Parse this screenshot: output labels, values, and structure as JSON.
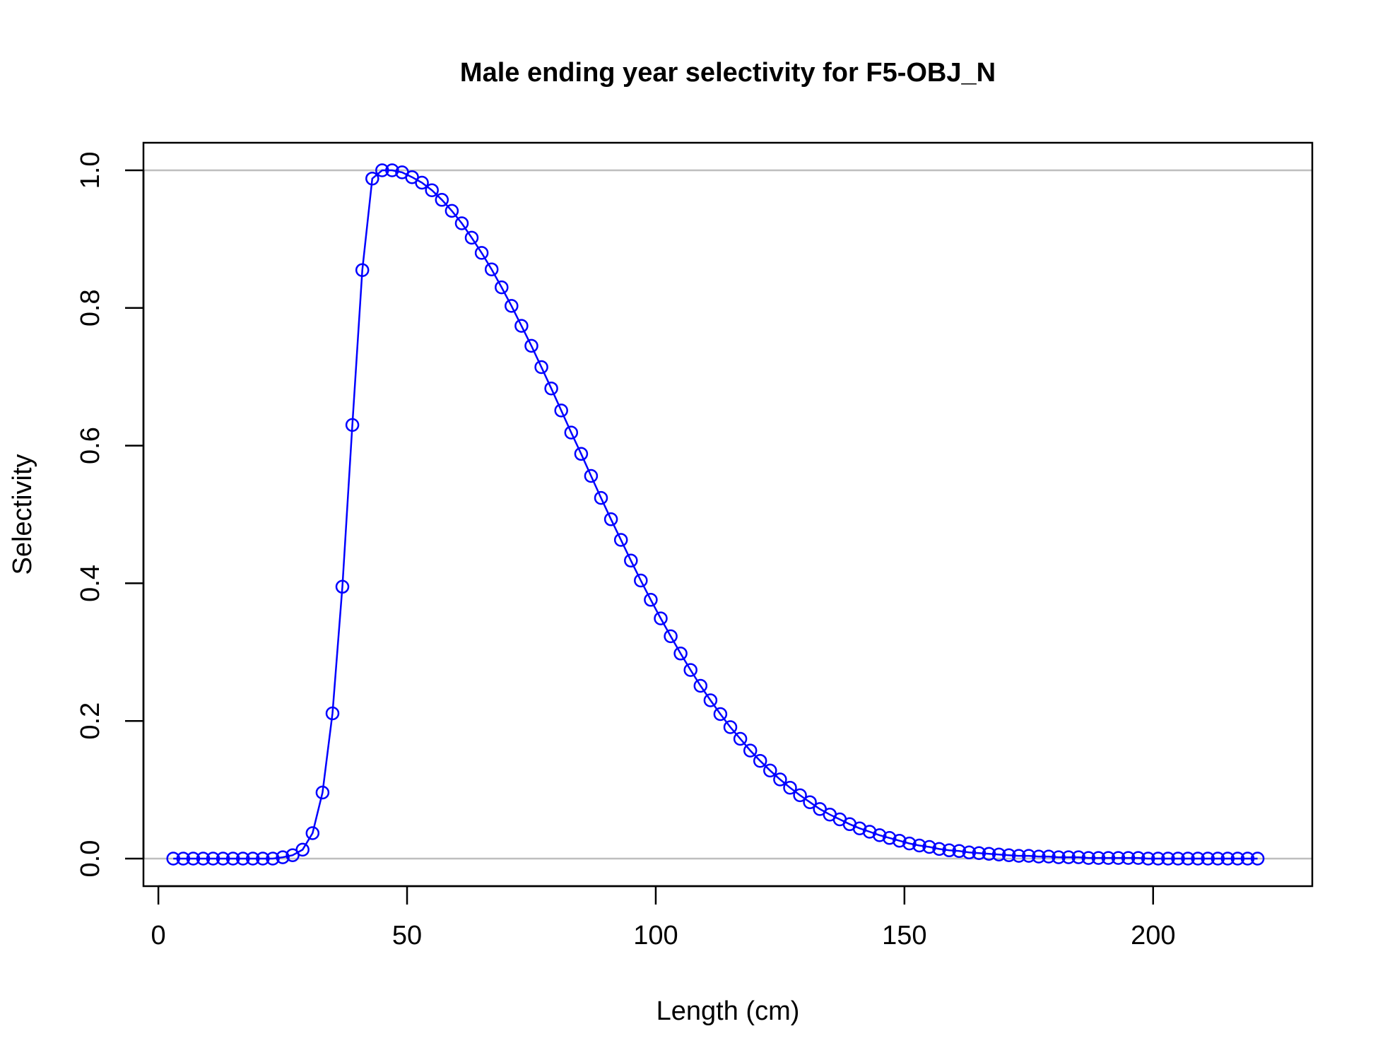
{
  "chart_data": {
    "type": "line",
    "title": "Male ending year selectivity for F5-OBJ_N",
    "xlabel": "Length (cm)",
    "ylabel": "Selectivity",
    "xlim": [
      -3,
      232
    ],
    "ylim": [
      -0.04,
      1.04
    ],
    "x_ticks": [
      0,
      50,
      100,
      150,
      200
    ],
    "x_tick_labels": [
      "0",
      "50",
      "100",
      "150",
      "200"
    ],
    "y_ticks": [
      0,
      0.2,
      0.4,
      0.6,
      0.8,
      1
    ],
    "y_tick_labels": [
      "0.0",
      "0.2",
      "0.4",
      "0.6",
      "0.8",
      "1.0"
    ],
    "reference_lines_y": [
      0,
      1
    ],
    "reference_line_color": "#bebebe",
    "series_color": "#0000ff",
    "marker": "open-circle",
    "grid": false,
    "legend": "none",
    "x": [
      3,
      5,
      7,
      9,
      11,
      13,
      15,
      17,
      19,
      21,
      23,
      25,
      27,
      29,
      31,
      33,
      35,
      37,
      39,
      41,
      43,
      45,
      47,
      49,
      51,
      53,
      55,
      57,
      59,
      61,
      63,
      65,
      67,
      69,
      71,
      73,
      75,
      77,
      79,
      81,
      83,
      85,
      87,
      89,
      91,
      93,
      95,
      97,
      99,
      101,
      103,
      105,
      107,
      109,
      111,
      113,
      115,
      117,
      119,
      121,
      123,
      125,
      127,
      129,
      131,
      133,
      135,
      137,
      139,
      141,
      143,
      145,
      147,
      149,
      151,
      153,
      155,
      157,
      159,
      161,
      163,
      165,
      167,
      169,
      171,
      173,
      175,
      177,
      179,
      181,
      183,
      185,
      187,
      189,
      191,
      193,
      195,
      197,
      199,
      201,
      203,
      205,
      207,
      209,
      211,
      213,
      215,
      217,
      219,
      221
    ],
    "y": [
      0,
      0,
      0,
      0,
      0,
      0,
      0,
      0,
      0,
      0,
      0,
      0.002,
      0.005,
      0.013,
      0.037,
      0.096,
      0.211,
      0.395,
      0.63,
      0.855,
      0.988,
      1.0,
      1.0,
      0.997,
      0.99,
      0.982,
      0.971,
      0.957,
      0.941,
      0.923,
      0.902,
      0.88,
      0.856,
      0.83,
      0.803,
      0.774,
      0.745,
      0.714,
      0.683,
      0.651,
      0.619,
      0.588,
      0.556,
      0.524,
      0.493,
      0.463,
      0.433,
      0.404,
      0.376,
      0.349,
      0.323,
      0.298,
      0.274,
      0.251,
      0.23,
      0.21,
      0.191,
      0.174,
      0.157,
      0.142,
      0.128,
      0.115,
      0.103,
      0.092,
      0.082,
      0.072,
      0.064,
      0.057,
      0.05,
      0.044,
      0.039,
      0.034,
      0.03,
      0.026,
      0.022,
      0.019,
      0.017,
      0.014,
      0.012,
      0.011,
      0.009,
      0.008,
      0.007,
      0.006,
      0.005,
      0.004,
      0.004,
      0.003,
      0.003,
      0.002,
      0.002,
      0.002,
      0.001,
      0.001,
      0.001,
      0.001,
      0.001,
      0.001,
      0,
      0,
      0,
      0,
      0,
      0,
      0,
      0,
      0,
      0,
      0,
      0
    ]
  }
}
